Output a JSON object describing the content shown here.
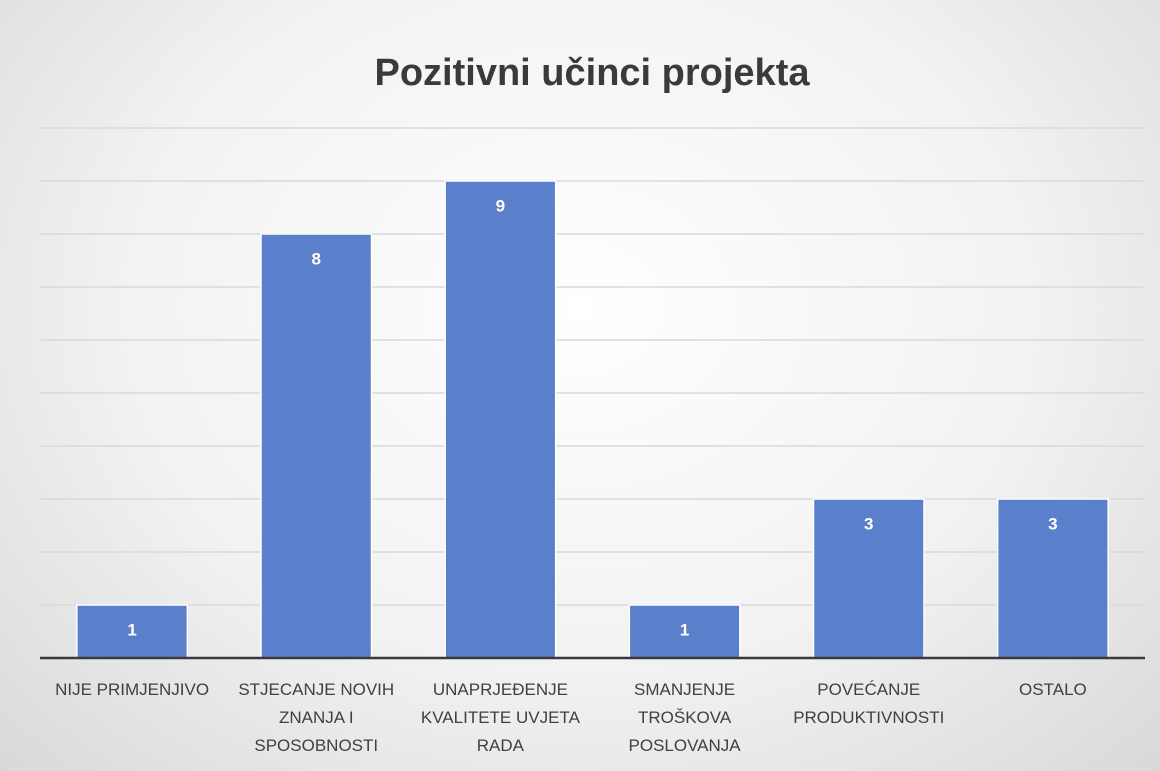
{
  "chart_data": {
    "type": "bar",
    "title": "Pozitivni učinci projekta",
    "categories": [
      "NIJE PRIMJENJIVO",
      "STJECANJE NOVIH ZNANJA I SPOSOBNOSTI",
      "UNAPRJEĐENJE KVALITETE UVJETA RADA",
      "SMANJENJE TROŠKOVA POSLOVANJA",
      "POVEĆANJE PRODUKTIVNOSTI",
      "OSTALO"
    ],
    "values": [
      1,
      8,
      9,
      1,
      3,
      3
    ],
    "color": "#5a80cb",
    "ylim": [
      0,
      10
    ],
    "yticks": [
      0,
      1,
      2,
      3,
      4,
      5,
      6,
      7,
      8,
      9,
      10
    ],
    "grid": true
  }
}
